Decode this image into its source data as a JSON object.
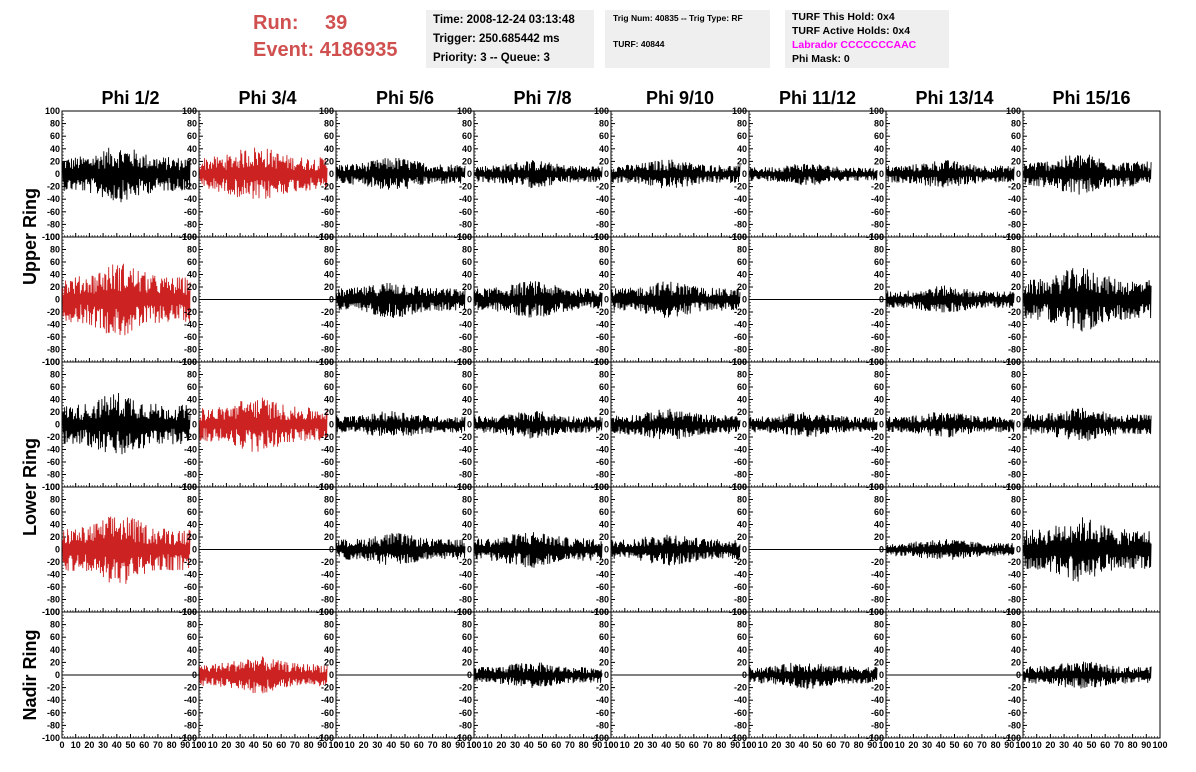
{
  "header": {
    "run_label": "Run:",
    "run_value": "39",
    "event_label": "Event:",
    "event_value": "4186935",
    "time": "Time: 2008-12-24 03:13:48",
    "trigger": "Trigger: 250.685442 ms",
    "priority": "Priority: 3 -- Queue: 3",
    "trig_num": "Trig Num: 40835 -- Trig Type: RF",
    "turf": "TURF: 40844",
    "turf_this_hold": "TURF This Hold: 0x4",
    "turf_active_holds": "TURF Active Holds: 0x4",
    "labrador": "Labrador CCCCCCCAAC",
    "phi_mask": "Phi Mask: 0",
    "labrador_color": "#ff00ff"
  },
  "chart_data": {
    "type": "line",
    "columns": [
      "Phi 1/2",
      "Phi 3/4",
      "Phi 5/6",
      "Phi 7/8",
      "Phi 9/10",
      "Phi 11/12",
      "Phi 13/14",
      "Phi 15/16"
    ],
    "rings": [
      "Upper Ring",
      "Lower Ring",
      "Nadir Ring"
    ],
    "ylim": [
      -100,
      100
    ],
    "xlim": [
      0,
      100
    ],
    "yticks": [
      "100",
      "80",
      "60",
      "40",
      "20",
      "0",
      "-20",
      "-40",
      "-60",
      "-80",
      "-100"
    ],
    "xticks": [
      "0",
      "10",
      "20",
      "30",
      "40",
      "50",
      "60",
      "70",
      "80",
      "90",
      "100"
    ],
    "colors": {
      "normal": "#000000",
      "triggered": "#cc2222"
    },
    "panels": [
      [
        {
          "amp": 30,
          "red": false,
          "flat": false
        },
        {
          "amp": 30,
          "red": true,
          "flat": false
        },
        {
          "amp": 18,
          "red": false,
          "flat": false
        },
        {
          "amp": 15,
          "red": false,
          "flat": false
        },
        {
          "amp": 16,
          "red": false,
          "flat": false
        },
        {
          "amp": 12,
          "red": false,
          "flat": false
        },
        {
          "amp": 15,
          "red": false,
          "flat": false
        },
        {
          "amp": 22,
          "red": false,
          "flat": false
        }
      ],
      [
        {
          "amp": 40,
          "red": true,
          "flat": false
        },
        {
          "amp": 0,
          "red": false,
          "flat": true
        },
        {
          "amp": 20,
          "red": false,
          "flat": false
        },
        {
          "amp": 20,
          "red": false,
          "flat": false
        },
        {
          "amp": 20,
          "red": false,
          "flat": false
        },
        {
          "amp": 0,
          "red": false,
          "flat": true
        },
        {
          "amp": 15,
          "red": false,
          "flat": false
        },
        {
          "amp": 35,
          "red": false,
          "flat": false
        }
      ],
      [
        {
          "amp": 35,
          "red": false,
          "flat": false
        },
        {
          "amp": 30,
          "red": true,
          "flat": false
        },
        {
          "amp": 15,
          "red": false,
          "flat": false
        },
        {
          "amp": 15,
          "red": false,
          "flat": false
        },
        {
          "amp": 17,
          "red": false,
          "flat": false
        },
        {
          "amp": 14,
          "red": false,
          "flat": false
        },
        {
          "amp": 14,
          "red": false,
          "flat": false
        },
        {
          "amp": 18,
          "red": false,
          "flat": false
        }
      ],
      [
        {
          "amp": 38,
          "red": true,
          "flat": false
        },
        {
          "amp": 0,
          "red": false,
          "flat": true
        },
        {
          "amp": 18,
          "red": false,
          "flat": false
        },
        {
          "amp": 20,
          "red": false,
          "flat": false
        },
        {
          "amp": 18,
          "red": false,
          "flat": false
        },
        {
          "amp": 0,
          "red": false,
          "flat": true
        },
        {
          "amp": 12,
          "red": false,
          "flat": false
        },
        {
          "amp": 35,
          "red": false,
          "flat": false
        }
      ],
      [
        {
          "amp": 0,
          "red": false,
          "flat": true
        },
        {
          "amp": 20,
          "red": true,
          "flat": false
        },
        {
          "amp": 0,
          "red": false,
          "flat": true
        },
        {
          "amp": 14,
          "red": false,
          "flat": false
        },
        {
          "amp": 0,
          "red": false,
          "flat": true
        },
        {
          "amp": 15,
          "red": false,
          "flat": false
        },
        {
          "amp": 0,
          "red": false,
          "flat": true
        },
        {
          "amp": 15,
          "red": false,
          "flat": false
        }
      ]
    ]
  }
}
